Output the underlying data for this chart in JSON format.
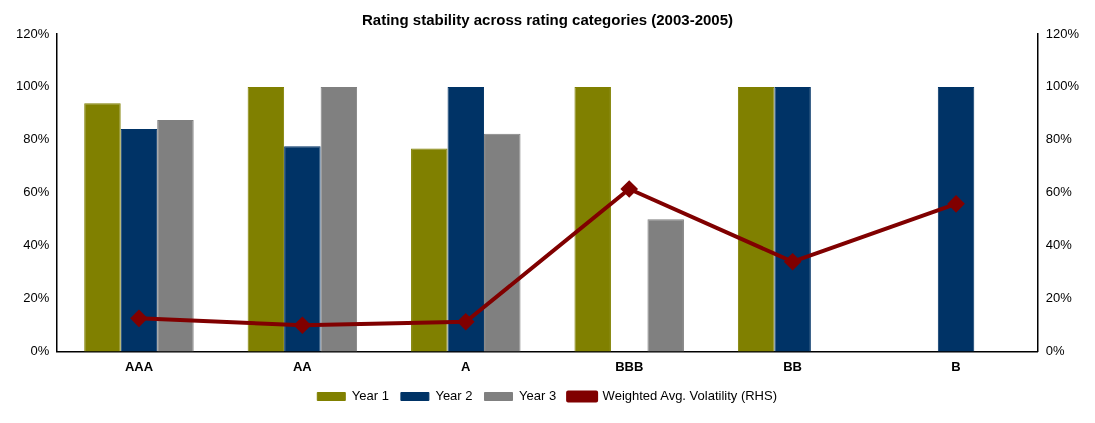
{
  "chart_data": {
    "type": "bar",
    "title": "Rating stability across rating categories (2003-2005)",
    "categories": [
      "AAA",
      "AA",
      "A",
      "BBB",
      "BB",
      "B"
    ],
    "series": [
      {
        "name": "Year 1",
        "color": "#808000",
        "values": [
          93.8,
          100,
          76.7,
          100,
          100,
          null
        ]
      },
      {
        "name": "Year 2",
        "color": "#003366",
        "values": [
          84.1,
          77.6,
          100,
          null,
          100,
          100
        ]
      },
      {
        "name": "Year 3",
        "color": "#808080",
        "values": [
          87.5,
          100,
          82.3,
          50,
          null,
          null
        ]
      },
      {
        "name": "Weighted Avg. Volatility (RHS)",
        "type": "line",
        "axis": "y2",
        "color": "#800000",
        "marker": "diamond",
        "values": [
          12.5,
          9.9,
          11.2,
          61.4,
          33.9,
          55.8
        ]
      }
    ],
    "ylim": [
      0,
      120
    ],
    "yticks": [
      {
        "value": 0,
        "label": "0%"
      },
      {
        "value": 20,
        "label": "20%"
      },
      {
        "value": 40,
        "label": "40%"
      },
      {
        "value": 60,
        "label": "60%"
      },
      {
        "value": 80,
        "label": "80%"
      },
      {
        "value": 100,
        "label": "100%"
      },
      {
        "value": 120,
        "label": "120%"
      }
    ],
    "y2lim": [
      0,
      120
    ],
    "y2ticks": [
      {
        "value": 0,
        "label": "0%"
      },
      {
        "value": 20,
        "label": "20%"
      },
      {
        "value": 40,
        "label": "40%"
      },
      {
        "value": 60,
        "label": "60%"
      },
      {
        "value": 80,
        "label": "80%"
      },
      {
        "value": 100,
        "label": "100%"
      },
      {
        "value": 120,
        "label": "120%"
      }
    ],
    "grid": false,
    "legend": "bottom"
  }
}
